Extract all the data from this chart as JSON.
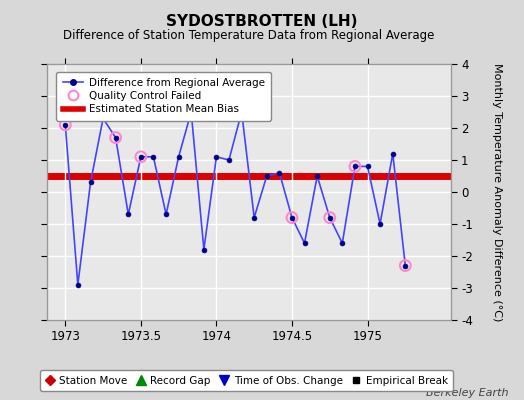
{
  "title": "SYDOSTBROTTEN (LH)",
  "subtitle": "Difference of Station Temperature Data from Regional Average",
  "ylabel": "Monthly Temperature Anomaly Difference (°C)",
  "watermark": "Berkeley Earth",
  "xlim": [
    1972.88,
    1975.55
  ],
  "ylim": [
    -4,
    4
  ],
  "xticks": [
    1973,
    1973.5,
    1974,
    1974.5,
    1975
  ],
  "yticks": [
    -4,
    -3,
    -2,
    -1,
    0,
    1,
    2,
    3,
    4
  ],
  "mean_bias": 0.5,
  "background_color": "#d8d8d8",
  "plot_background": "#e8e8e8",
  "grid_color": "#ffffff",
  "line_color": "#4444ff",
  "bias_line_color": "#dd0000",
  "qc_marker_color": "#ff88cc",
  "data_x": [
    1973.0,
    1973.083,
    1973.167,
    1973.25,
    1973.333,
    1973.417,
    1973.5,
    1973.583,
    1973.667,
    1973.75,
    1973.833,
    1973.917,
    1974.0,
    1974.083,
    1974.167,
    1974.25,
    1974.333,
    1974.417,
    1974.5,
    1974.583,
    1974.667,
    1974.75,
    1974.833,
    1974.917,
    1975.0,
    1975.083,
    1975.167,
    1975.25
  ],
  "data_y": [
    2.1,
    -2.9,
    0.3,
    2.3,
    1.7,
    -0.7,
    1.1,
    1.1,
    -0.7,
    1.1,
    2.5,
    -1.8,
    1.1,
    1.0,
    2.5,
    -0.8,
    0.5,
    0.6,
    -0.8,
    -1.6,
    0.5,
    -0.8,
    -1.6,
    0.8,
    0.8,
    -1.0,
    1.2,
    -2.3
  ],
  "qc_failed_indices": [
    0,
    4,
    6,
    10,
    18,
    21,
    23,
    27
  ]
}
